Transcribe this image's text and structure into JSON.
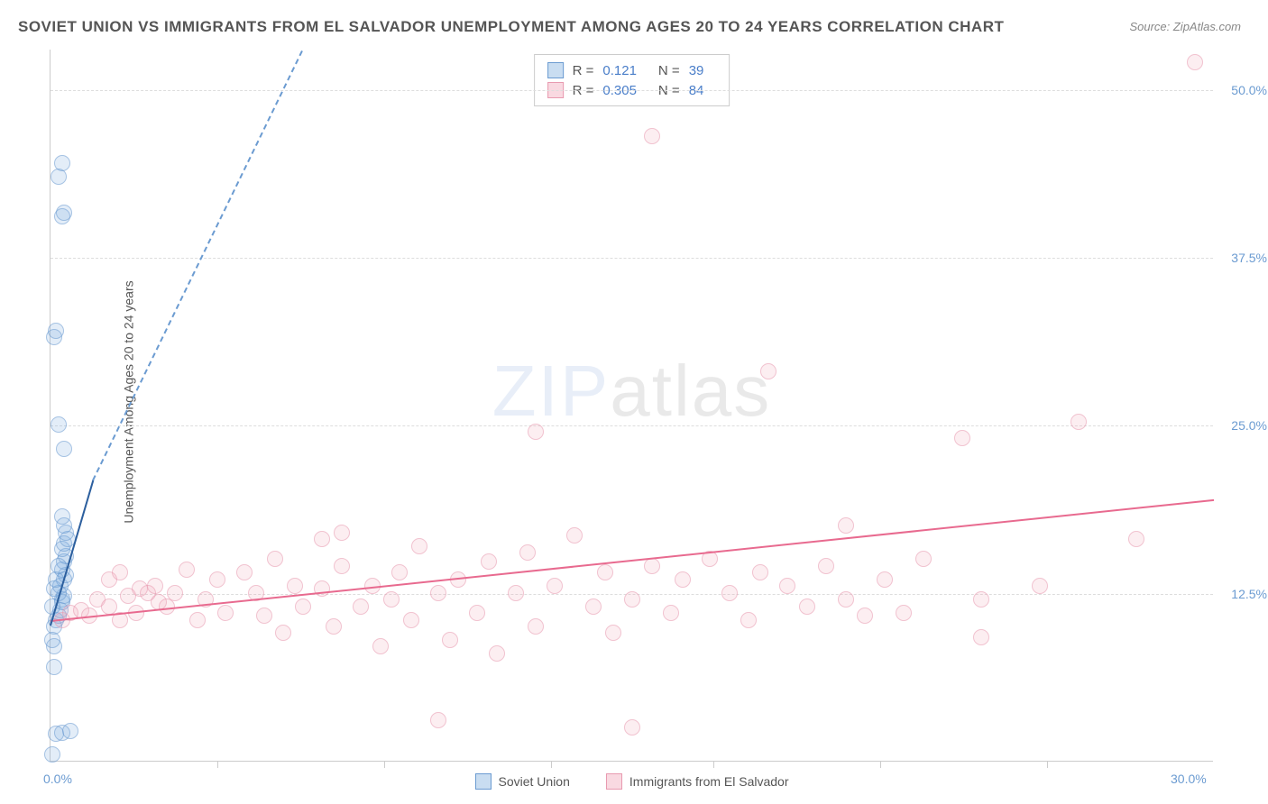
{
  "title": "SOVIET UNION VS IMMIGRANTS FROM EL SALVADOR UNEMPLOYMENT AMONG AGES 20 TO 24 YEARS CORRELATION CHART",
  "source": "Source: ZipAtlas.com",
  "ylabel": "Unemployment Among Ages 20 to 24 years",
  "watermark_zip": "ZIP",
  "watermark_atlas": "atlas",
  "chart": {
    "type": "scatter",
    "xlim": [
      0,
      30
    ],
    "ylim": [
      0,
      53
    ],
    "xtick_values": [
      0,
      30
    ],
    "xtick_labels": [
      "0.0%",
      "30.0%"
    ],
    "xtick_minor": [
      4.3,
      8.6,
      12.9,
      17.1,
      21.4,
      25.7
    ],
    "ytick_values": [
      12.5,
      25.0,
      37.5,
      50.0
    ],
    "ytick_labels": [
      "12.5%",
      "25.0%",
      "37.5%",
      "50.0%"
    ],
    "grid_color": "#dddddd",
    "background_color": "#ffffff",
    "series": [
      {
        "name": "Soviet Union",
        "color_fill": "rgba(120,170,220,0.35)",
        "color_stroke": "#6b9bd1",
        "marker": "circle",
        "marker_size": 18,
        "R": "0.121",
        "N": "39",
        "regression": {
          "x1": 0,
          "y1": 10.2,
          "x2": 1.1,
          "y2": 21,
          "solid_until_x": 1.1,
          "dash_x2": 6.5,
          "dash_y2": 53,
          "color_solid": "#2c5f9e",
          "color_dash": "#6b9bd1"
        },
        "points": [
          [
            0.05,
            0.5
          ],
          [
            0.15,
            2.0
          ],
          [
            0.3,
            2.1
          ],
          [
            0.5,
            2.2
          ],
          [
            0.1,
            8.5
          ],
          [
            0.1,
            7.0
          ],
          [
            0.15,
            10.5
          ],
          [
            0.2,
            10.8
          ],
          [
            0.25,
            11.2
          ],
          [
            0.3,
            11.8
          ],
          [
            0.3,
            12.0
          ],
          [
            0.35,
            12.3
          ],
          [
            0.2,
            12.5
          ],
          [
            0.25,
            13.0
          ],
          [
            0.35,
            13.5
          ],
          [
            0.4,
            13.8
          ],
          [
            0.3,
            14.2
          ],
          [
            0.35,
            14.8
          ],
          [
            0.4,
            15.2
          ],
          [
            0.3,
            15.8
          ],
          [
            0.35,
            16.2
          ],
          [
            0.45,
            16.5
          ],
          [
            0.4,
            17.0
          ],
          [
            0.35,
            17.5
          ],
          [
            0.3,
            18.2
          ],
          [
            0.35,
            23.2
          ],
          [
            0.2,
            25.0
          ],
          [
            0.1,
            31.5
          ],
          [
            0.15,
            32.0
          ],
          [
            0.3,
            40.5
          ],
          [
            0.35,
            40.8
          ],
          [
            0.2,
            43.5
          ],
          [
            0.3,
            44.5
          ],
          [
            0.05,
            11.5
          ],
          [
            0.1,
            12.8
          ],
          [
            0.15,
            13.5
          ],
          [
            0.2,
            14.5
          ],
          [
            0.1,
            10.0
          ],
          [
            0.05,
            9.0
          ]
        ]
      },
      {
        "name": "Immigrants from El Salvador",
        "color_fill": "rgba(240,160,180,0.3)",
        "color_stroke": "#e89ab0",
        "marker": "circle",
        "marker_size": 18,
        "R": "0.305",
        "N": "84",
        "regression": {
          "x1": 0,
          "y1": 10.5,
          "x2": 30,
          "y2": 19.5,
          "color_solid": "#e86a8f"
        },
        "points": [
          [
            0.3,
            10.5
          ],
          [
            0.5,
            11.0
          ],
          [
            0.8,
            11.2
          ],
          [
            1.0,
            10.8
          ],
          [
            1.2,
            12.0
          ],
          [
            1.5,
            11.5
          ],
          [
            1.8,
            10.5
          ],
          [
            2.0,
            12.3
          ],
          [
            2.2,
            11.0
          ],
          [
            2.5,
            12.5
          ],
          [
            2.7,
            13.0
          ],
          [
            3.0,
            11.5
          ],
          [
            1.5,
            13.5
          ],
          [
            1.8,
            14.0
          ],
          [
            2.3,
            12.8
          ],
          [
            2.8,
            11.8
          ],
          [
            3.2,
            12.5
          ],
          [
            3.5,
            14.2
          ],
          [
            3.8,
            10.5
          ],
          [
            4.0,
            12.0
          ],
          [
            4.3,
            13.5
          ],
          [
            4.5,
            11.0
          ],
          [
            5.0,
            14.0
          ],
          [
            5.3,
            12.5
          ],
          [
            5.5,
            10.8
          ],
          [
            5.8,
            15.0
          ],
          [
            6.0,
            9.5
          ],
          [
            6.3,
            13.0
          ],
          [
            6.5,
            11.5
          ],
          [
            7.0,
            16.5
          ],
          [
            7.0,
            12.8
          ],
          [
            7.3,
            10.0
          ],
          [
            7.5,
            14.5
          ],
          [
            7.5,
            17.0
          ],
          [
            8.0,
            11.5
          ],
          [
            8.3,
            13.0
          ],
          [
            8.5,
            8.5
          ],
          [
            8.8,
            12.0
          ],
          [
            9.0,
            14.0
          ],
          [
            9.3,
            10.5
          ],
          [
            9.5,
            16.0
          ],
          [
            10.0,
            12.5
          ],
          [
            10.0,
            3.0
          ],
          [
            10.3,
            9.0
          ],
          [
            10.5,
            13.5
          ],
          [
            11.0,
            11.0
          ],
          [
            11.3,
            14.8
          ],
          [
            11.5,
            8.0
          ],
          [
            12.0,
            12.5
          ],
          [
            12.3,
            15.5
          ],
          [
            12.5,
            10.0
          ],
          [
            12.5,
            24.5
          ],
          [
            13.0,
            13.0
          ],
          [
            13.5,
            16.8
          ],
          [
            14.0,
            11.5
          ],
          [
            14.3,
            14.0
          ],
          [
            14.5,
            9.5
          ],
          [
            15.0,
            12.0
          ],
          [
            15.0,
            2.5
          ],
          [
            15.5,
            14.5
          ],
          [
            15.5,
            46.5
          ],
          [
            16.0,
            11.0
          ],
          [
            16.3,
            13.5
          ],
          [
            17.0,
            15.0
          ],
          [
            17.5,
            12.5
          ],
          [
            18.0,
            10.5
          ],
          [
            18.3,
            14.0
          ],
          [
            18.5,
            29.0
          ],
          [
            19.0,
            13.0
          ],
          [
            19.5,
            11.5
          ],
          [
            20.0,
            14.5
          ],
          [
            20.5,
            12.0
          ],
          [
            20.5,
            17.5
          ],
          [
            21.0,
            10.8
          ],
          [
            21.5,
            13.5
          ],
          [
            22.0,
            11.0
          ],
          [
            22.5,
            15.0
          ],
          [
            23.5,
            24.0
          ],
          [
            24.0,
            12.0
          ],
          [
            24.0,
            9.2
          ],
          [
            25.5,
            13.0
          ],
          [
            26.5,
            25.2
          ],
          [
            28.0,
            16.5
          ],
          [
            29.5,
            52.0
          ]
        ]
      }
    ],
    "legend_top_labels": {
      "R": "R =",
      "N": "N ="
    },
    "legend_bottom": [
      "Soviet Union",
      "Immigrants from El Salvador"
    ]
  }
}
